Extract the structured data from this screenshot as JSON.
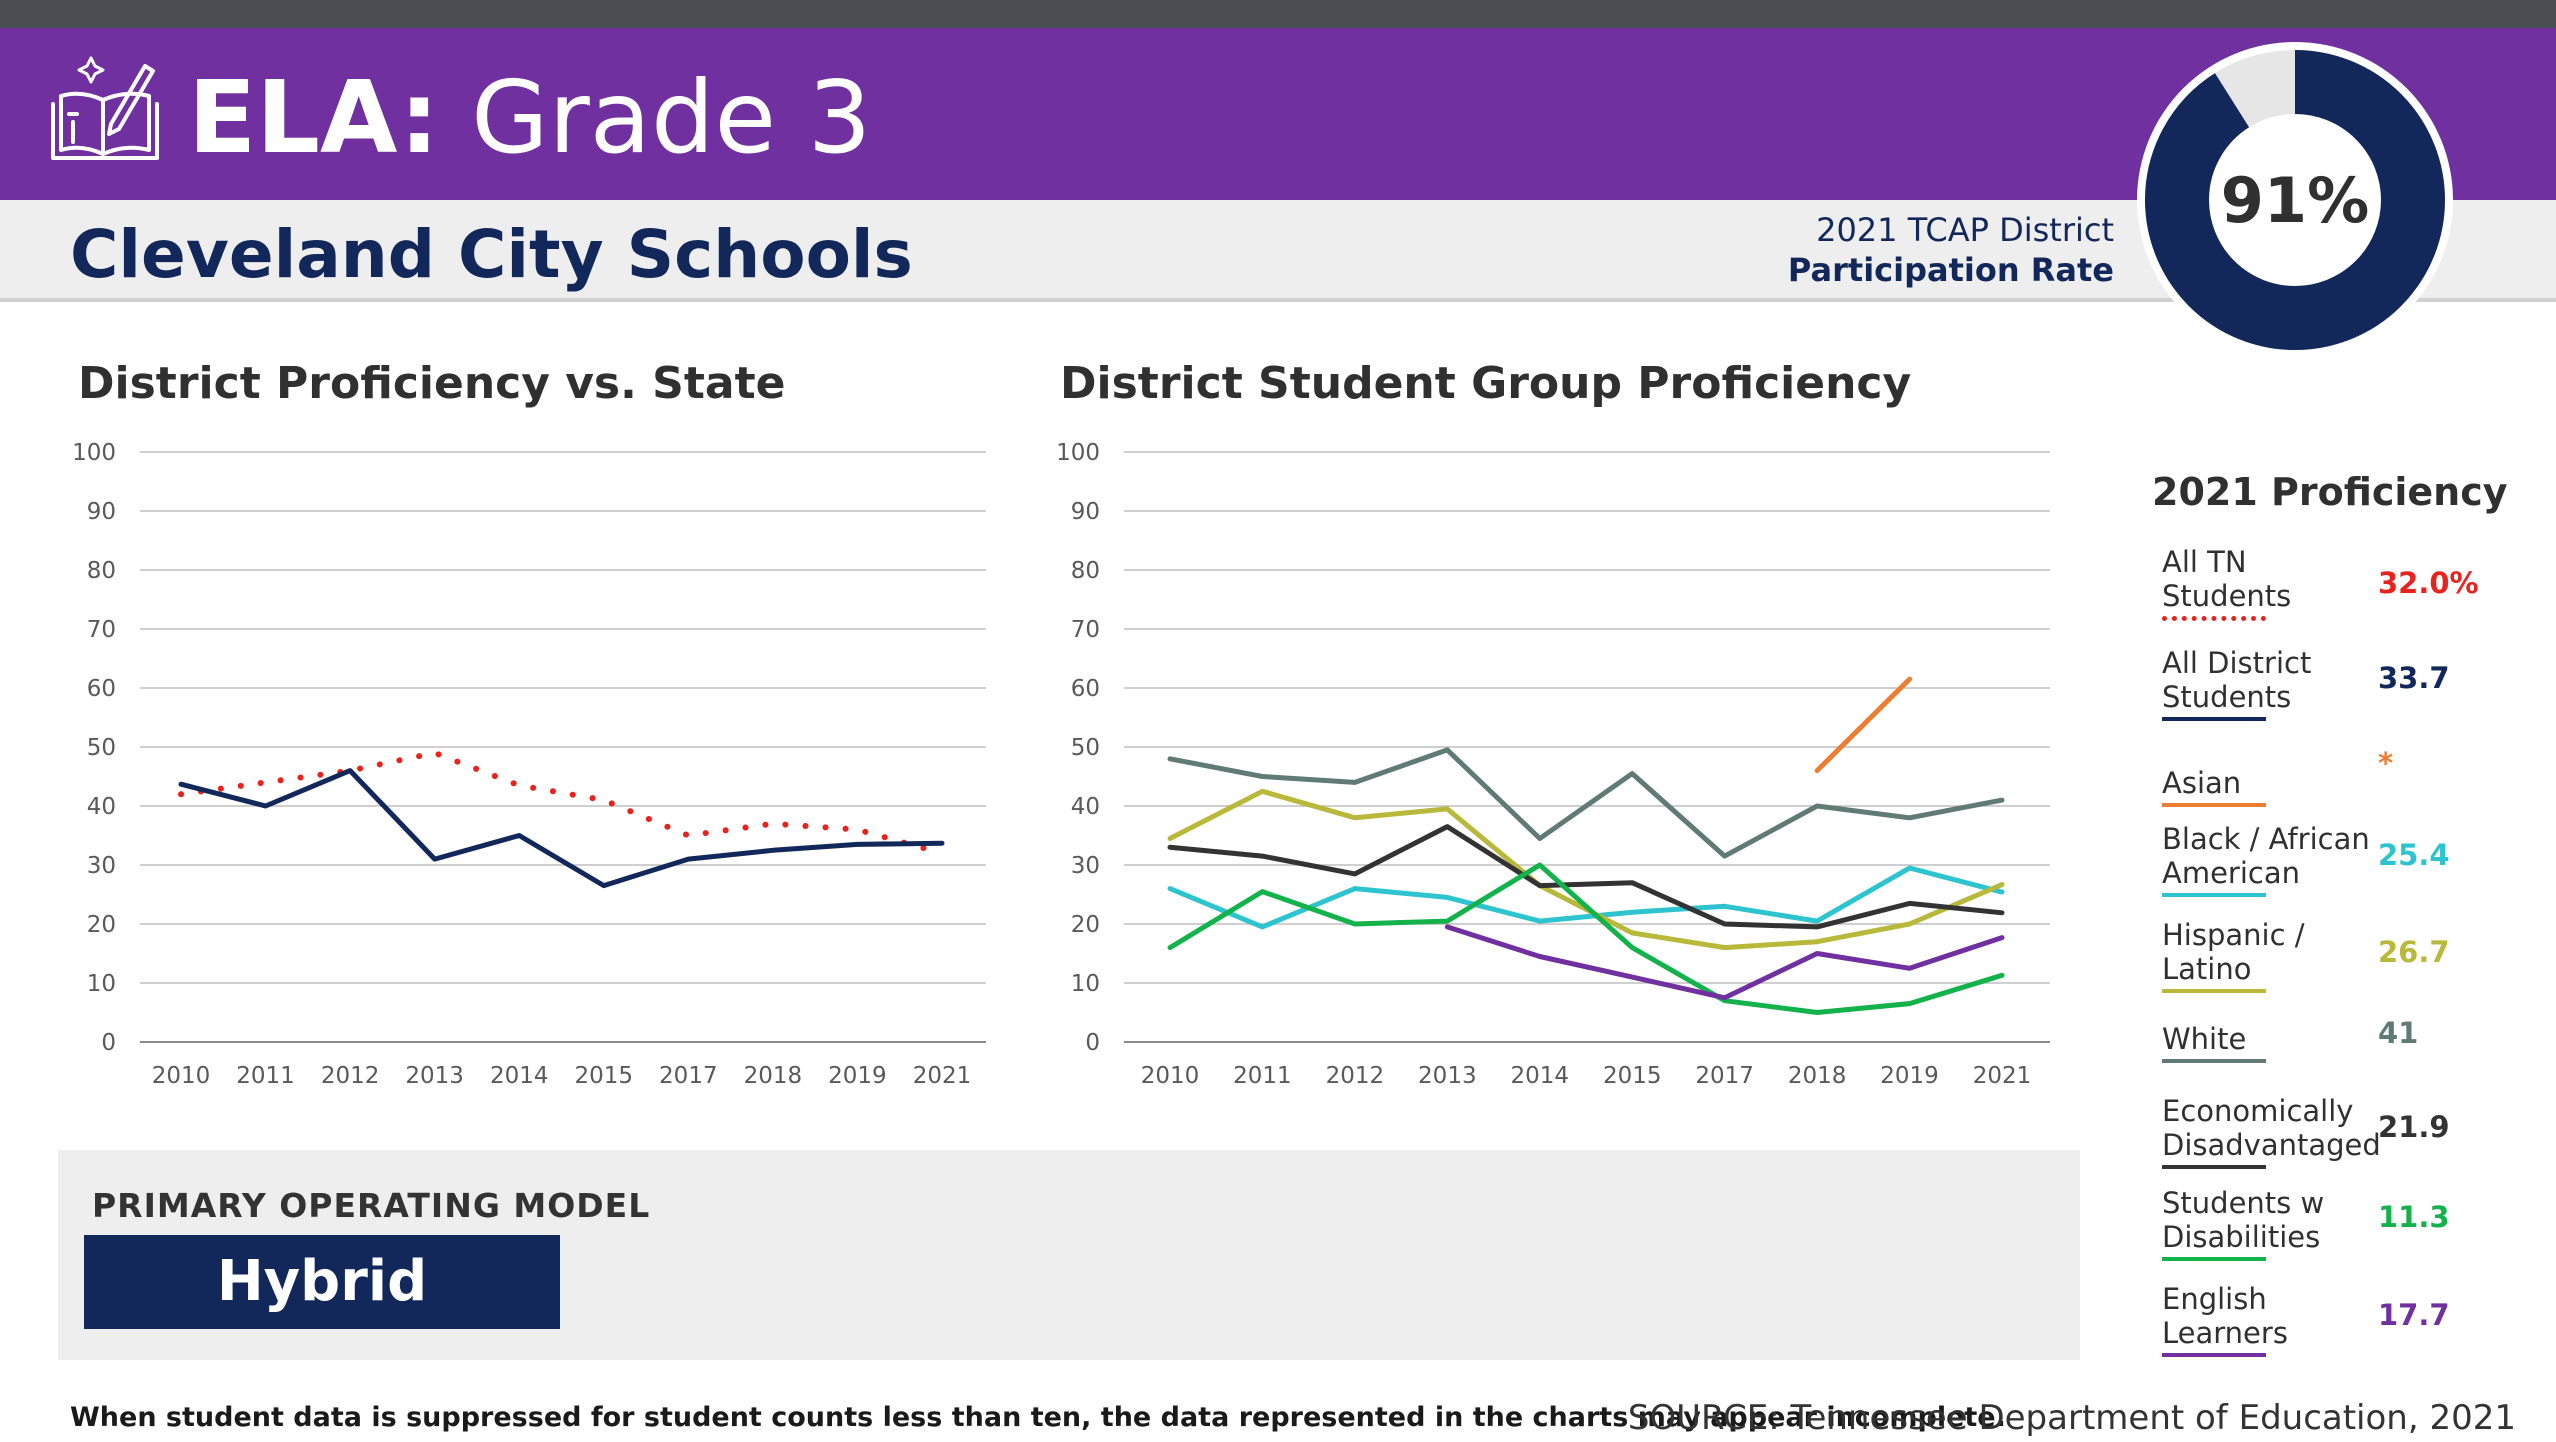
{
  "header": {
    "subject": "ELA:",
    "grade": "Grade 3",
    "district": "Cleveland City Schools",
    "participation_line1": "2021 TCAP District",
    "participation_line2": "Participation Rate",
    "participation_value": "91%",
    "participation_pct": 91,
    "colors": {
      "purple": "#7030a0",
      "navy": "#12285a"
    }
  },
  "chart_data": [
    {
      "type": "line",
      "title": "District Proficiency vs. State",
      "categories": [
        "2010",
        "2011",
        "2012",
        "2013",
        "2014",
        "2015",
        "2017",
        "2018",
        "2019",
        "2021"
      ],
      "ylim": [
        0,
        100
      ],
      "yticks": [
        0,
        10,
        20,
        30,
        40,
        50,
        60,
        70,
        80,
        90,
        100
      ],
      "grid": true,
      "series": [
        {
          "name": "All TN Students",
          "color": "#e8231e",
          "style": "dotted",
          "values": [
            42,
            44,
            46,
            49,
            43.5,
            41,
            35,
            37,
            36,
            32
          ]
        },
        {
          "name": "All District Students",
          "color": "#12285a",
          "style": "solid",
          "values": [
            43.7,
            40,
            46,
            31,
            35,
            26.5,
            31,
            32.5,
            33.5,
            33.7
          ]
        }
      ]
    },
    {
      "type": "line",
      "title": "District Student Group Proficiency",
      "categories": [
        "2010",
        "2011",
        "2012",
        "2013",
        "2014",
        "2015",
        "2017",
        "2018",
        "2019",
        "2021"
      ],
      "ylim": [
        0,
        100
      ],
      "yticks": [
        0,
        10,
        20,
        30,
        40,
        50,
        60,
        70,
        80,
        90,
        100
      ],
      "grid": true,
      "series": [
        {
          "name": "Asian",
          "color": "#ed7d31",
          "values": [
            null,
            null,
            null,
            null,
            null,
            null,
            null,
            46,
            61.5,
            null
          ]
        },
        {
          "name": "Black / African American",
          "color": "#2ec4cf",
          "values": [
            26,
            19.5,
            26,
            24.5,
            20.5,
            22,
            23,
            20.5,
            29.5,
            25.4
          ]
        },
        {
          "name": "Hispanic / Latino",
          "color": "#b8b83a",
          "values": [
            34.5,
            42.5,
            38,
            39.5,
            26.5,
            18.5,
            16,
            17,
            20,
            26.7
          ]
        },
        {
          "name": "White",
          "color": "#607b74",
          "values": [
            48,
            45,
            44,
            49.5,
            34.5,
            45.5,
            31.5,
            40,
            38,
            41
          ]
        },
        {
          "name": "Economically Disadvantaged",
          "color": "#333333",
          "values": [
            33,
            31.5,
            28.5,
            36.5,
            26.5,
            27,
            20,
            19.5,
            23.5,
            21.9
          ]
        },
        {
          "name": "Students w Disabilities",
          "color": "#13b24b",
          "values": [
            16,
            25.5,
            20,
            20.5,
            30,
            16,
            7,
            5,
            6.5,
            11.3
          ]
        },
        {
          "name": "English Learners",
          "color": "#7030a0",
          "values": [
            null,
            null,
            null,
            19.5,
            14.5,
            11,
            7.5,
            15,
            12.5,
            17.7
          ]
        }
      ]
    }
  ],
  "legend": {
    "title": "2021 Proficiency",
    "items": [
      {
        "label": "All TN Students",
        "value": "32.0%",
        "color": "#e8231e",
        "dotted": true
      },
      {
        "label": "All District Students",
        "value": "33.7",
        "color": "#12285a"
      },
      {
        "label": "Asian",
        "value": "*",
        "color": "#ed7d31"
      },
      {
        "label": "Black / African American",
        "value": "25.4",
        "color": "#2ec4cf"
      },
      {
        "label": "Hispanic / Latino",
        "value": "26.7",
        "color": "#b8b83a"
      },
      {
        "label": "White",
        "value": "41",
        "color": "#607b74"
      },
      {
        "label": "Economically Disadvantaged",
        "value": "21.9",
        "color": "#333333"
      },
      {
        "label": "Students w Disabilities",
        "value": "11.3",
        "color": "#13b24b"
      },
      {
        "label": "English Learners",
        "value": "17.7",
        "color": "#7030a0"
      }
    ]
  },
  "model": {
    "label": "PRIMARY OPERATING MODEL",
    "value": "Hybrid"
  },
  "footer": {
    "note": "When student data is suppressed for student counts less than ten, the data represented in the charts may appear incomplete.",
    "source": "SOURCE: Tennessee Department of Education, 2021"
  }
}
